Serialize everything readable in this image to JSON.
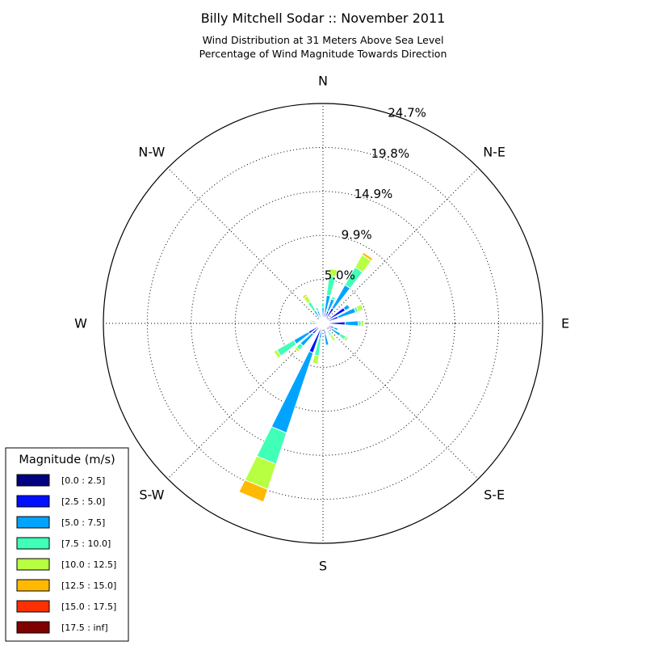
{
  "chart_data": {
    "type": "windrose",
    "title": "Billy Mitchell Sodar :: November 2011",
    "subtitle_lines": [
      "Wind Distribution at 31 Meters Above Sea Level",
      "Percentage of Wind Magnitude Towards Direction"
    ],
    "direction_labels": [
      "N",
      "N-E",
      "E",
      "S-E",
      "S",
      "S-W",
      "W",
      "N-W"
    ],
    "radial_ticks": [
      "5.0%",
      "9.9%",
      "14.9%",
      "19.8%",
      "24.7%"
    ],
    "radial_tick_values": [
      4.95,
      9.9,
      14.85,
      19.8,
      24.75
    ],
    "r_max": 24.75,
    "legend": {
      "title": "Magnitude (m/s)",
      "bins": [
        "[0.0 : 2.5]",
        "[2.5 : 5.0]",
        "[5.0 : 7.5]",
        "[7.5 : 10.0]",
        "[10.0 : 12.5]",
        "[12.5 : 15.0]",
        "[15.0 : 17.5]",
        "[17.5 : inf]"
      ],
      "colors": [
        "#000080",
        "#0010ff",
        "#00a4ff",
        "#40ffb7",
        "#b7ff40",
        "#ffb900",
        "#ff3000",
        "#800000"
      ]
    },
    "sectors": [
      {
        "direction_deg": 0,
        "values": [
          0.3,
          0.3,
          1.2,
          0.5,
          0.1,
          0,
          0,
          0
        ]
      },
      {
        "direction_deg": 11.25,
        "values": [
          0.4,
          0.8,
          2.0,
          2.2,
          0.8,
          0,
          0,
          0
        ]
      },
      {
        "direction_deg": 22.5,
        "values": [
          0.5,
          1.0,
          1.4,
          0.3,
          0.1,
          0,
          0,
          0
        ]
      },
      {
        "direction_deg": 33.75,
        "values": [
          0.5,
          1.5,
          3.0,
          2.3,
          1.6,
          0.3,
          0,
          0
        ]
      },
      {
        "direction_deg": 45,
        "values": [
          0.3,
          0.2,
          0.1,
          0,
          0,
          0,
          0,
          0
        ]
      },
      {
        "direction_deg": 56.25,
        "values": [
          0.6,
          2.3,
          0.6,
          0,
          0,
          0,
          0,
          0
        ]
      },
      {
        "direction_deg": 67.5,
        "values": [
          0.3,
          1.5,
          2.1,
          0.3,
          0.6,
          0,
          0,
          0
        ]
      },
      {
        "direction_deg": 78.75,
        "values": [
          0.2,
          0.2,
          0.1,
          0,
          0,
          0,
          0,
          0
        ]
      },
      {
        "direction_deg": 90,
        "values": [
          0.5,
          2.0,
          1.5,
          0.3,
          0.3,
          0,
          0,
          0
        ]
      },
      {
        "direction_deg": 101.25,
        "values": [
          0.2,
          0.3,
          0.1,
          0,
          0,
          0,
          0,
          0
        ]
      },
      {
        "direction_deg": 112.5,
        "values": [
          0.3,
          1.0,
          0.5,
          0.1,
          0,
          0,
          0,
          0
        ]
      },
      {
        "direction_deg": 123.75,
        "values": [
          0.4,
          0.7,
          1.2,
          0.7,
          0.3,
          0,
          0,
          0
        ]
      },
      {
        "direction_deg": 135,
        "values": [
          0.2,
          0.2,
          0.1,
          0,
          0,
          0,
          0,
          0
        ]
      },
      {
        "direction_deg": 146.25,
        "values": [
          0.3,
          0.5,
          0.1,
          0.7,
          0.7,
          0,
          0,
          0
        ]
      },
      {
        "direction_deg": 157.5,
        "values": [
          0.2,
          0.2,
          0.1,
          0,
          0,
          0,
          0,
          0
        ]
      },
      {
        "direction_deg": 168.75,
        "values": [
          0.3,
          0.9,
          1.3,
          0.1,
          0,
          0,
          0,
          0
        ]
      },
      {
        "direction_deg": 180,
        "values": [
          0.2,
          0.1,
          0.1,
          0,
          0,
          0,
          0,
          0
        ]
      },
      {
        "direction_deg": 191.25,
        "values": [
          0.3,
          0.5,
          0.9,
          2.0,
          0.9,
          0,
          0,
          0
        ]
      },
      {
        "direction_deg": 202.5,
        "values": [
          0.3,
          3.2,
          9.5,
          3.7,
          3.0,
          1.5,
          0,
          0
        ]
      },
      {
        "direction_deg": 213.75,
        "values": [
          0.2,
          0.1,
          0.1,
          0,
          0,
          0,
          0,
          0
        ]
      },
      {
        "direction_deg": 225,
        "values": [
          0.3,
          1.3,
          1.8,
          0.6,
          0.3,
          0,
          0,
          0
        ]
      },
      {
        "direction_deg": 236.25,
        "values": [
          0.4,
          1.5,
          1.9,
          2.2,
          0.4,
          0.1,
          0,
          0
        ]
      },
      {
        "direction_deg": 247.5,
        "values": [
          0.2,
          0.2,
          0.1,
          0,
          0,
          0,
          0,
          0
        ]
      },
      {
        "direction_deg": 258.75,
        "values": [
          0.2,
          0.2,
          0.2,
          0,
          0,
          0,
          0,
          0
        ]
      },
      {
        "direction_deg": 270,
        "values": [
          0.2,
          1.0,
          0.3,
          0.1,
          0,
          0,
          0,
          0
        ]
      },
      {
        "direction_deg": 281.25,
        "values": [
          0.2,
          0.3,
          0.4,
          0.4,
          0.2,
          0,
          0,
          0
        ]
      },
      {
        "direction_deg": 292.5,
        "values": [
          0.2,
          0.2,
          0.1,
          0,
          0,
          0,
          0,
          0
        ]
      },
      {
        "direction_deg": 303.75,
        "values": [
          0.2,
          0.4,
          0.3,
          0.1,
          0,
          0,
          0,
          0
        ]
      },
      {
        "direction_deg": 315,
        "values": [
          0.2,
          0.2,
          0.2,
          0,
          0,
          0,
          0,
          0
        ]
      },
      {
        "direction_deg": 326.25,
        "values": [
          0.2,
          0.5,
          1.0,
          1.1,
          0.8,
          0.2,
          0,
          0
        ]
      },
      {
        "direction_deg": 337.5,
        "values": [
          0.2,
          0.3,
          1.0,
          0.4,
          0.1,
          0,
          0,
          0
        ]
      },
      {
        "direction_deg": 348.75,
        "values": [
          0.3,
          0.2,
          0.3,
          0.2,
          0,
          0,
          0,
          0
        ]
      }
    ]
  }
}
